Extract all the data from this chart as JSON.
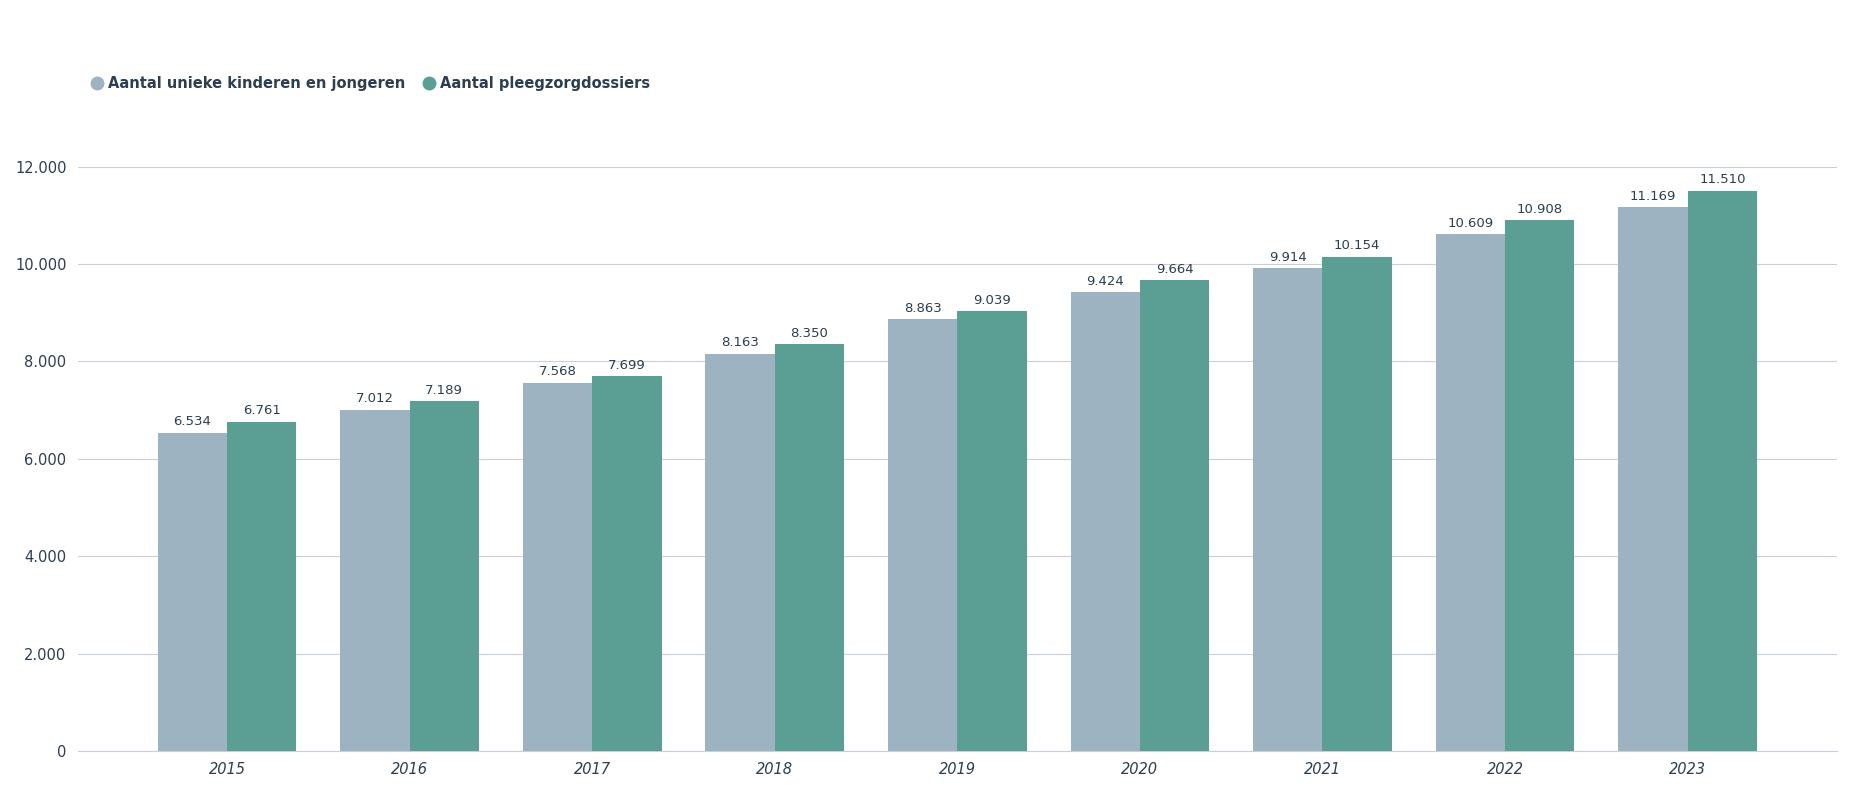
{
  "years": [
    2015,
    2016,
    2017,
    2018,
    2019,
    2020,
    2021,
    2022,
    2023
  ],
  "unieke_kinderen": [
    6534,
    7012,
    7568,
    8163,
    8863,
    9424,
    9914,
    10609,
    11169
  ],
  "pleegzorgdossiers": [
    6761,
    7189,
    7699,
    8350,
    9039,
    9664,
    10154,
    10908,
    11510
  ],
  "color_unieke": "#9DB3C2",
  "color_pleegzorg": "#5B9E94",
  "legend_label_unieke": "Aantal unieke kinderen en jongeren",
  "legend_label_pleegzorg": "Aantal pleegzorgdossiers",
  "ylim": [
    0,
    12500
  ],
  "yticks": [
    0,
    2000,
    4000,
    6000,
    8000,
    10000,
    12000
  ],
  "ytick_labels": [
    "0",
    "2.000",
    "4.000",
    "6.000",
    "8.000",
    "10.000",
    "12.000"
  ],
  "bar_width": 0.38,
  "background_color": "#ffffff",
  "grid_color": "#c8d0dc",
  "label_fontsize": 9.5,
  "tick_fontsize": 10.5,
  "legend_fontsize": 10.5,
  "text_color": "#2c3e50"
}
